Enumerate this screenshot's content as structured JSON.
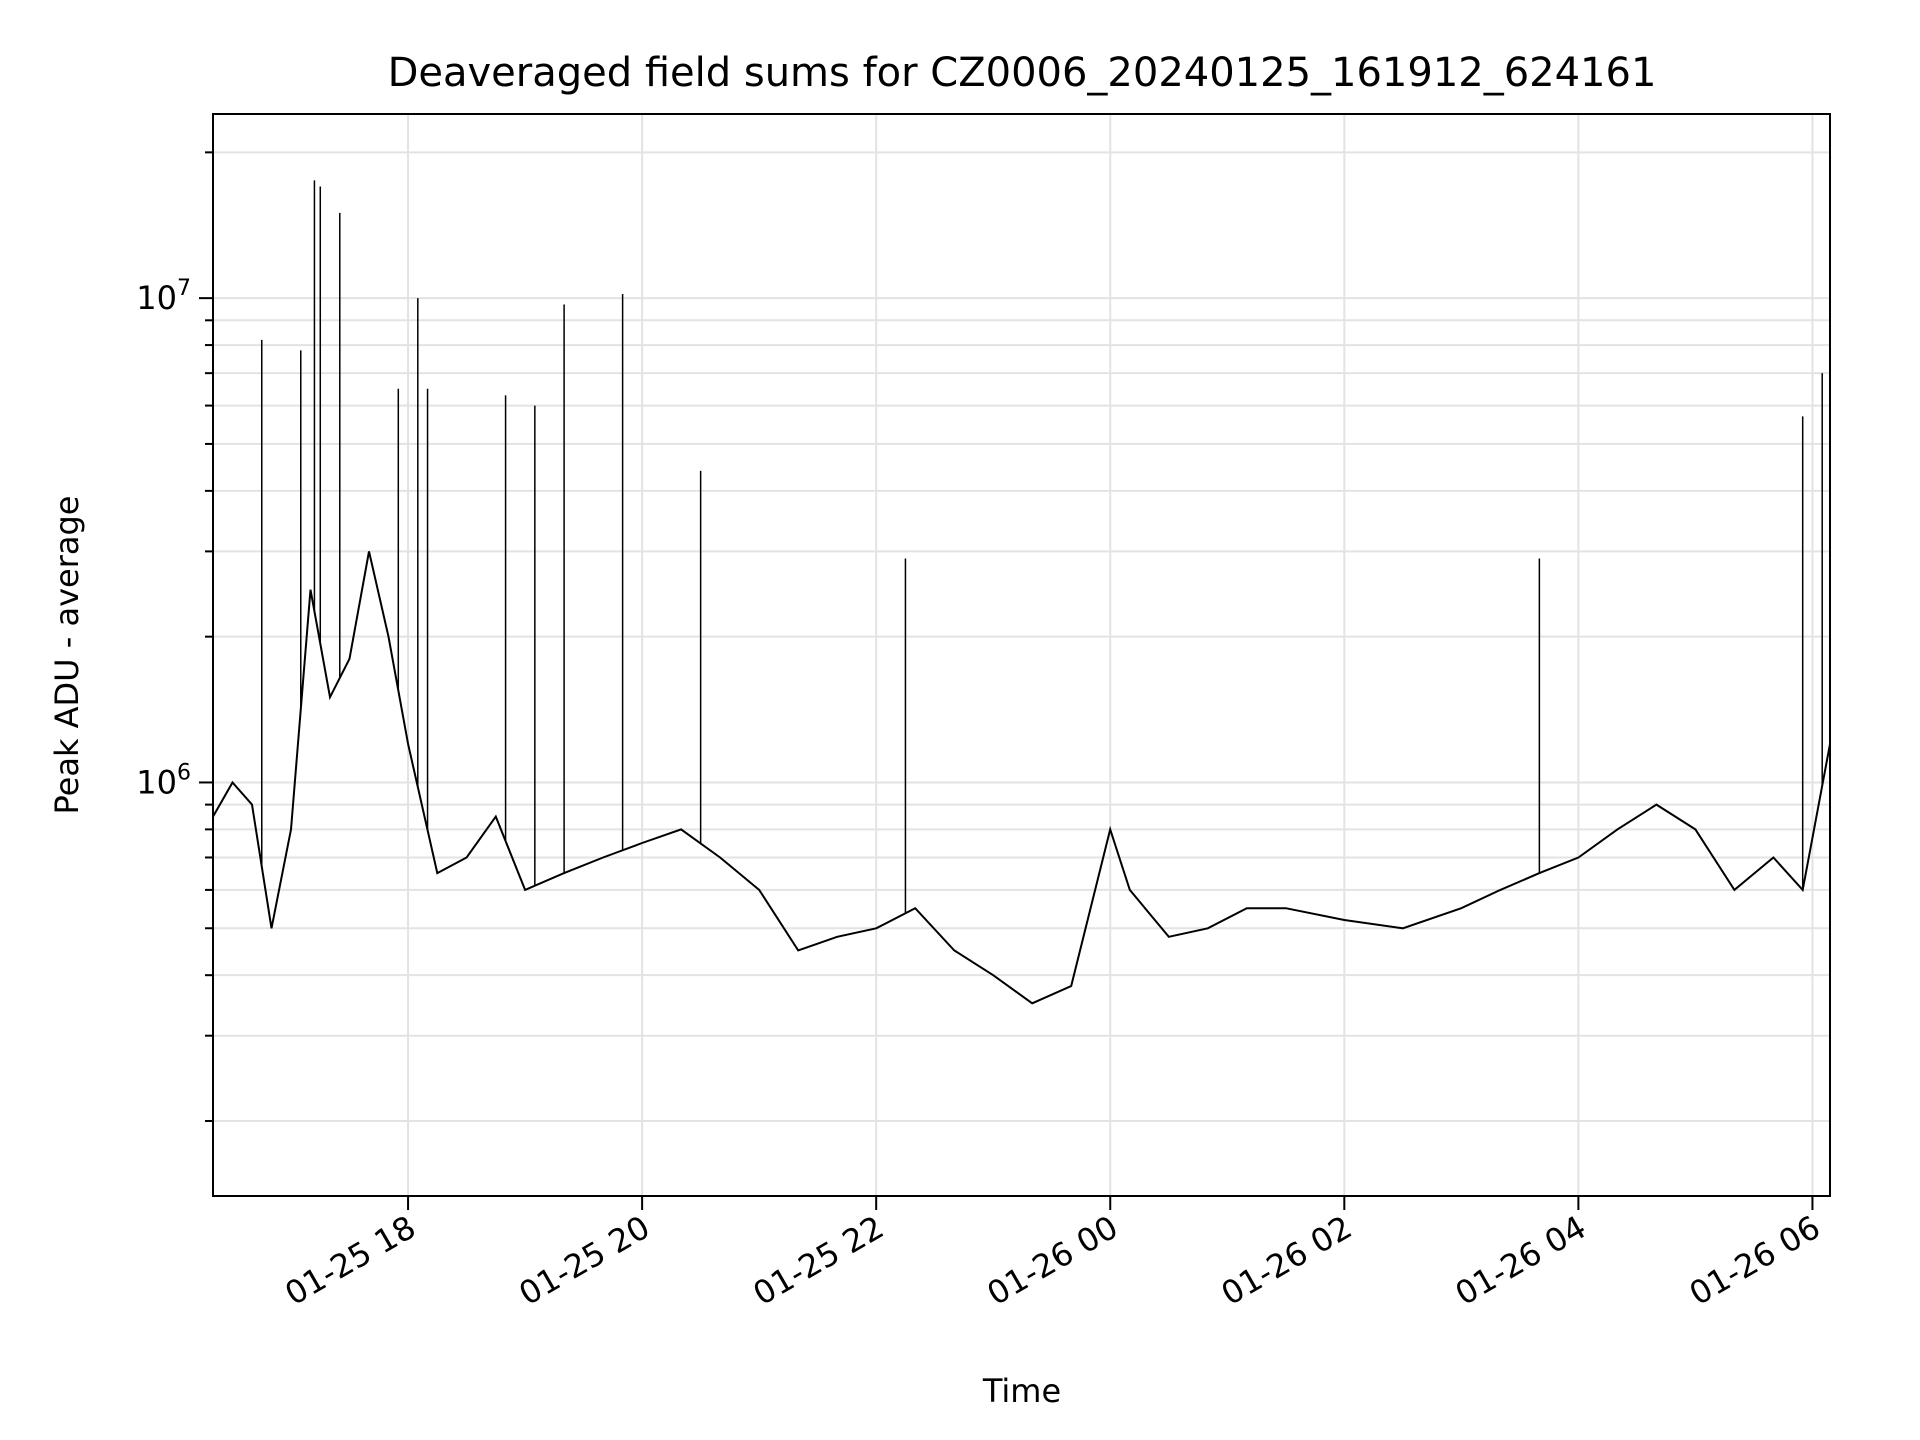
{
  "chart_data": {
    "type": "line",
    "title": "Deaveraged field sums for CZ0006_20240125_161912_624161",
    "xlabel": "Time",
    "ylabel": "Peak ADU - average",
    "y_scale": "log",
    "grid": true,
    "line_color": "#000000",
    "xlim": [
      "2024-01-25 16:20",
      "2024-01-26 06:09"
    ],
    "ylim": [
      140000,
      24000000
    ],
    "x_ticks": [
      {
        "value": "2024-01-25 18:00",
        "label": "01-25 18"
      },
      {
        "value": "2024-01-25 20:00",
        "label": "01-25 20"
      },
      {
        "value": "2024-01-25 22:00",
        "label": "01-25 22"
      },
      {
        "value": "2024-01-26 00:00",
        "label": "01-26 00"
      },
      {
        "value": "2024-01-26 02:00",
        "label": "01-26 02"
      },
      {
        "value": "2024-01-26 04:00",
        "label": "01-26 04"
      },
      {
        "value": "2024-01-26 06:00",
        "label": "01-26 06"
      }
    ],
    "y_ticks": [
      {
        "value": 1000000,
        "base": "10",
        "exp": "6"
      },
      {
        "value": 10000000,
        "base": "10",
        "exp": "7"
      }
    ],
    "series": [
      {
        "x": [
          "2024-01-25 16:20",
          "2024-01-25 16:30",
          "2024-01-25 16:40",
          "2024-01-25 16:50",
          "2024-01-25 17:00",
          "2024-01-25 17:10",
          "2024-01-25 17:20",
          "2024-01-25 17:30",
          "2024-01-25 17:40",
          "2024-01-25 17:50",
          "2024-01-25 18:00",
          "2024-01-25 18:15",
          "2024-01-25 18:30",
          "2024-01-25 18:45",
          "2024-01-25 19:00",
          "2024-01-25 19:20",
          "2024-01-25 19:40",
          "2024-01-25 20:00",
          "2024-01-25 20:20",
          "2024-01-25 20:40",
          "2024-01-25 21:00",
          "2024-01-25 21:20",
          "2024-01-25 21:40",
          "2024-01-25 22:00",
          "2024-01-25 22:20",
          "2024-01-25 22:40",
          "2024-01-25 23:00",
          "2024-01-25 23:20",
          "2024-01-25 23:40",
          "2024-01-26 00:00",
          "2024-01-26 00:10",
          "2024-01-26 00:30",
          "2024-01-26 00:50",
          "2024-01-26 01:10",
          "2024-01-26 01:30",
          "2024-01-26 02:00",
          "2024-01-26 02:30",
          "2024-01-26 03:00",
          "2024-01-26 03:20",
          "2024-01-26 03:40",
          "2024-01-26 04:00",
          "2024-01-26 04:20",
          "2024-01-26 04:40",
          "2024-01-26 05:00",
          "2024-01-26 05:20",
          "2024-01-26 05:40",
          "2024-01-26 05:55",
          "2024-01-26 06:09"
        ],
        "y": [
          850000,
          1000000,
          900000,
          500000,
          800000,
          2500000,
          1500000,
          1800000,
          3000000,
          2000000,
          1200000,
          650000,
          700000,
          850000,
          600000,
          650000,
          700000,
          750000,
          800000,
          700000,
          600000,
          450000,
          480000,
          500000,
          550000,
          450000,
          400000,
          350000,
          380000,
          800000,
          600000,
          480000,
          500000,
          550000,
          550000,
          520000,
          500000,
          550000,
          600000,
          650000,
          700000,
          800000,
          900000,
          800000,
          600000,
          700000,
          600000,
          1200000
        ]
      }
    ],
    "spikes": [
      {
        "x": "2024-01-25 16:45",
        "y": 8200000
      },
      {
        "x": "2024-01-25 17:05",
        "y": 7800000
      },
      {
        "x": "2024-01-25 17:12",
        "y": 17500000
      },
      {
        "x": "2024-01-25 17:15",
        "y": 17000000
      },
      {
        "x": "2024-01-25 17:25",
        "y": 15000000
      },
      {
        "x": "2024-01-25 17:55",
        "y": 6500000
      },
      {
        "x": "2024-01-25 18:05",
        "y": 10000000
      },
      {
        "x": "2024-01-25 18:10",
        "y": 6500000
      },
      {
        "x": "2024-01-25 18:50",
        "y": 6300000
      },
      {
        "x": "2024-01-25 19:05",
        "y": 6000000
      },
      {
        "x": "2024-01-25 19:20",
        "y": 9700000
      },
      {
        "x": "2024-01-25 19:50",
        "y": 10200000
      },
      {
        "x": "2024-01-25 20:30",
        "y": 4400000
      },
      {
        "x": "2024-01-25 22:15",
        "y": 2900000
      },
      {
        "x": "2024-01-26 03:40",
        "y": 2900000
      },
      {
        "x": "2024-01-26 05:55",
        "y": 5700000
      },
      {
        "x": "2024-01-26 06:05",
        "y": 7000000
      }
    ]
  }
}
